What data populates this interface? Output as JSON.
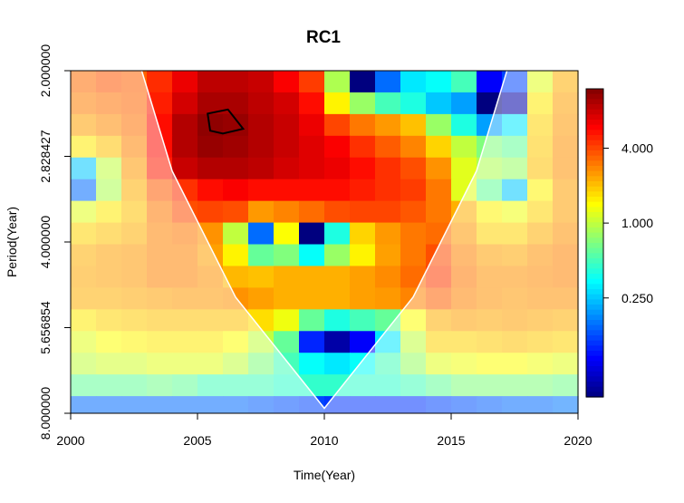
{
  "chart_data": {
    "type": "heatmap",
    "title": "RC1",
    "xlabel": "Time(Year)",
    "ylabel": "Period(Year)",
    "x_ticks": [
      "2000",
      "2005",
      "2010",
      "2015",
      "2020"
    ],
    "x_tick_values": [
      2000,
      2005,
      2010,
      2015,
      2020
    ],
    "xlim": [
      2000,
      2020
    ],
    "y_ticks": [
      "2.000000",
      "2.828427",
      "4.000000",
      "5.656854",
      "8.000000"
    ],
    "y_tick_values": [
      2.0,
      2.828427,
      4.0,
      5.656854,
      8.0
    ],
    "ylim": [
      2.0,
      8.0
    ],
    "y_scale": "log2",
    "y_reversed": true,
    "colorbar": {
      "scale": "log",
      "tick_labels": [
        "0.250",
        "1.000",
        "4.000"
      ],
      "tick_values": [
        0.25,
        1.0,
        4.0
      ],
      "range": [
        0.04,
        12
      ],
      "colors": [
        "#00007f",
        "#0000ff",
        "#007fff",
        "#00ffff",
        "#7fff7f",
        "#ffff00",
        "#ff7f00",
        "#ff0000",
        "#7f0000"
      ]
    },
    "grid_columns": 20,
    "grid_rows": 15,
    "power_level_rows": [
      [
        3.2,
        3.6,
        3.4,
        4.6,
        6.5,
        8.5,
        8.5,
        8.0,
        6.0,
        4.2,
        0.9,
        0.04,
        0.15,
        0.3,
        0.35,
        0.5,
        0.08,
        0.12,
        1.2,
        2.2
      ],
      [
        2.9,
        3.1,
        3.3,
        5.0,
        7.5,
        9.5,
        9.5,
        8.5,
        7.5,
        5.5,
        1.5,
        0.8,
        0.5,
        0.4,
        0.25,
        0.2,
        0.04,
        0.05,
        1.6,
        2.4
      ],
      [
        2.4,
        2.7,
        3.1,
        5.5,
        9.0,
        11.0,
        10.5,
        9.0,
        8.0,
        6.5,
        4.0,
        3.0,
        2.5,
        2.0,
        0.8,
        0.4,
        0.2,
        0.3,
        1.8,
        2.5
      ],
      [
        1.6,
        2.0,
        2.8,
        5.5,
        9.0,
        10.5,
        10.0,
        9.0,
        8.0,
        7.0,
        6.0,
        4.5,
        3.5,
        2.8,
        1.8,
        1.0,
        0.7,
        0.6,
        1.9,
        2.6
      ],
      [
        0.25,
        1.0,
        2.5,
        5.0,
        8.0,
        9.0,
        9.0,
        8.5,
        7.5,
        7.0,
        6.5,
        5.5,
        4.5,
        3.8,
        2.6,
        1.2,
        0.9,
        0.8,
        2.0,
        2.6
      ],
      [
        0.15,
        0.9,
        2.2,
        3.5,
        4.5,
        5.5,
        6.0,
        5.5,
        5.5,
        5.5,
        5.5,
        5.0,
        4.5,
        4.2,
        3.0,
        1.2,
        0.6,
        0.25,
        1.5,
        2.4
      ],
      [
        1.2,
        1.6,
        2.0,
        3.0,
        3.8,
        4.0,
        3.8,
        2.5,
        2.8,
        3.2,
        3.8,
        4.0,
        4.0,
        3.6,
        3.0,
        2.2,
        1.5,
        1.3,
        1.8,
        2.4
      ],
      [
        1.8,
        2.0,
        2.2,
        2.8,
        3.0,
        2.6,
        1.0,
        0.15,
        1.4,
        0.02,
        0.4,
        1.8,
        2.5,
        3.0,
        3.2,
        2.5,
        1.8,
        1.8,
        2.2,
        2.6
      ],
      [
        2.2,
        2.4,
        2.5,
        2.8,
        2.8,
        2.4,
        1.5,
        0.6,
        0.7,
        0.35,
        0.8,
        1.5,
        2.4,
        3.0,
        3.8,
        2.8,
        2.4,
        2.3,
        2.6,
        2.8
      ],
      [
        2.3,
        2.4,
        2.5,
        2.8,
        2.8,
        2.6,
        2.1,
        2.0,
        2.2,
        2.2,
        2.2,
        2.4,
        2.7,
        3.2,
        4.2,
        3.0,
        2.6,
        2.6,
        2.7,
        2.8
      ],
      [
        2.2,
        2.2,
        2.3,
        2.4,
        2.5,
        2.5,
        2.6,
        2.4,
        2.2,
        2.2,
        2.2,
        2.4,
        2.5,
        2.8,
        3.4,
        2.8,
        2.6,
        2.5,
        2.6,
        2.6
      ],
      [
        1.6,
        1.8,
        1.9,
        2.0,
        2.0,
        2.0,
        2.0,
        1.7,
        1.3,
        0.6,
        0.4,
        0.5,
        0.6,
        1.4,
        2.2,
        2.4,
        2.3,
        2.4,
        2.3,
        2.2
      ],
      [
        1.2,
        1.4,
        1.5,
        1.6,
        1.6,
        1.6,
        1.4,
        1.0,
        0.6,
        0.1,
        0.05,
        0.08,
        0.3,
        1.0,
        1.8,
        1.8,
        1.9,
        2.0,
        1.9,
        1.8
      ],
      [
        1.0,
        1.1,
        1.1,
        1.2,
        1.2,
        1.2,
        1.0,
        0.7,
        0.5,
        0.35,
        0.3,
        0.35,
        0.5,
        0.8,
        1.2,
        1.3,
        1.4,
        1.4,
        1.3,
        1.2
      ],
      [
        0.6,
        0.6,
        0.6,
        0.65,
        0.6,
        0.5,
        0.5,
        0.5,
        0.45,
        0.45,
        0.45,
        0.45,
        0.45,
        0.5,
        0.6,
        0.7,
        0.7,
        0.7,
        0.7,
        0.65
      ]
    ],
    "bottom_band_levels": [
      0.15,
      0.15,
      0.15,
      0.15,
      0.15,
      0.15,
      0.15,
      0.14,
      0.13,
      0.12,
      0.11,
      0.11,
      0.11,
      0.11,
      0.12,
      0.13,
      0.14,
      0.15,
      0.15,
      0.16
    ],
    "cone_of_influence": [
      {
        "x": 2002.8,
        "y": 2.0
      },
      {
        "x": 2004.0,
        "y": 3.0
      },
      {
        "x": 2006.5,
        "y": 5.0
      },
      {
        "x": 2010.0,
        "y": 7.84
      },
      {
        "x": 2013.5,
        "y": 5.0
      },
      {
        "x": 2016.0,
        "y": 3.0
      },
      {
        "x": 2017.2,
        "y": 2.0
      }
    ],
    "significance_contour": [
      {
        "x": 2005.4,
        "y": 2.38
      },
      {
        "x": 2006.2,
        "y": 2.34
      },
      {
        "x": 2006.8,
        "y": 2.53
      },
      {
        "x": 2006.0,
        "y": 2.58
      },
      {
        "x": 2005.5,
        "y": 2.55
      }
    ]
  }
}
